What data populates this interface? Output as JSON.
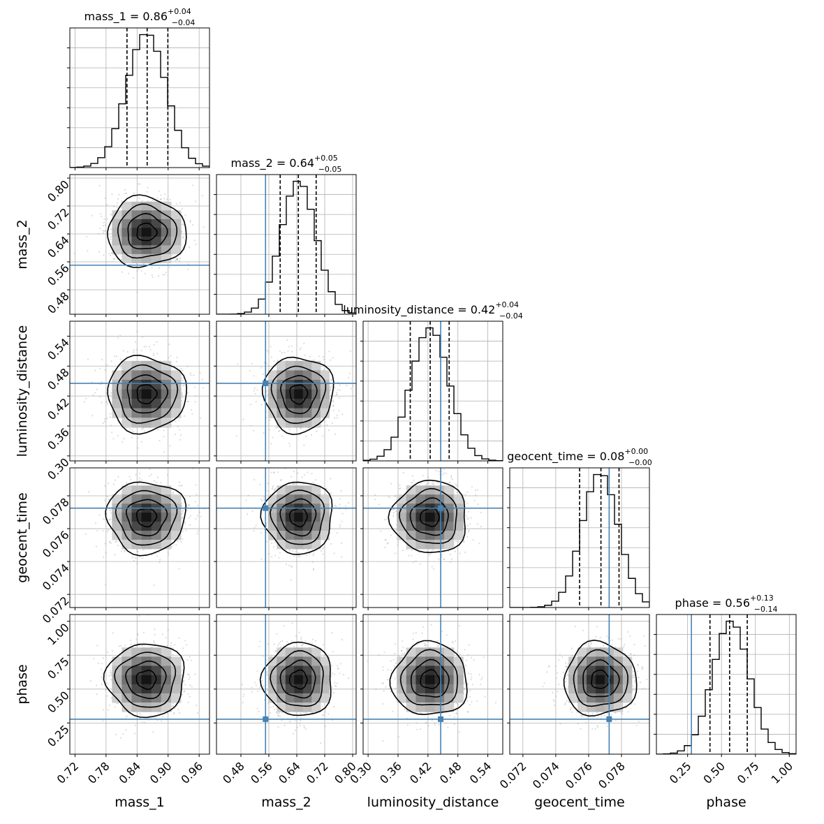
{
  "chart_data": {
    "type": "corner",
    "parameters": [
      {
        "name": "mass_1",
        "label": "mass_1",
        "median": "0.86",
        "plus": "+0.04",
        "minus": "−0.04",
        "range": [
          0.71,
          0.98
        ],
        "ticks": [
          0.72,
          0.78,
          0.84,
          0.9,
          0.96
        ],
        "tick_labels": [
          "0.72",
          "0.78",
          "0.84",
          "0.90",
          "0.96"
        ],
        "quantiles": [
          0.8205,
          0.8595,
          0.8995
        ],
        "center": 0.858,
        "sd": 0.038,
        "truth": null
      },
      {
        "name": "mass_2",
        "label": "mass_2",
        "median": "0.64",
        "plus": "+0.05",
        "minus": "−0.05",
        "range": [
          0.41,
          0.81
        ],
        "ticks": [
          0.48,
          0.56,
          0.64,
          0.72,
          0.8
        ],
        "tick_labels": [
          "0.48",
          "0.56",
          "0.64",
          "0.72",
          "0.80"
        ],
        "quantiles": [
          0.5925,
          0.6445,
          0.6955
        ],
        "center": 0.645,
        "sd": 0.05,
        "truth": 0.5505
      },
      {
        "name": "luminosity_distance",
        "label": "luminosity_distance",
        "median": "0.42",
        "plus": "+0.04",
        "minus": "−0.04",
        "range": [
          0.29,
          0.57
        ],
        "ticks": [
          0.3,
          0.36,
          0.42,
          0.48,
          0.54
        ],
        "tick_labels": [
          "0.30",
          "0.36",
          "0.42",
          "0.48",
          "0.54"
        ],
        "quantiles": [
          0.3845,
          0.4245,
          0.4625
        ],
        "center": 0.424,
        "sd": 0.038,
        "truth": 0.4455
      },
      {
        "name": "geocent_time",
        "label": "geocent_time",
        "median": "0.08",
        "plus": "+0.00",
        "minus": "−0.00",
        "range": [
          0.0712,
          0.0797
        ],
        "ticks": [
          0.072,
          0.074,
          0.076,
          0.078
        ],
        "tick_labels": [
          "0.072",
          "0.074",
          "0.076",
          "0.078"
        ],
        "quantiles": [
          0.07545,
          0.07675,
          0.07785
        ],
        "center": 0.0767,
        "sd": 0.0011,
        "truth": 0.07725
      },
      {
        "name": "phase",
        "label": "phase",
        "median": "0.56",
        "plus": "+0.13",
        "minus": "−0.14",
        "range": [
          0.02,
          1.05
        ],
        "ticks": [
          0.25,
          0.5,
          0.75,
          1.0
        ],
        "tick_labels": [
          "0.25",
          "0.50",
          "0.75",
          "1.00"
        ],
        "quantiles": [
          0.415,
          0.56,
          0.69
        ],
        "center": 0.57,
        "sd": 0.135,
        "truth": 0.278
      }
    ],
    "truth_color": "#4682b4",
    "grid": true,
    "contour_color": "#000000"
  }
}
